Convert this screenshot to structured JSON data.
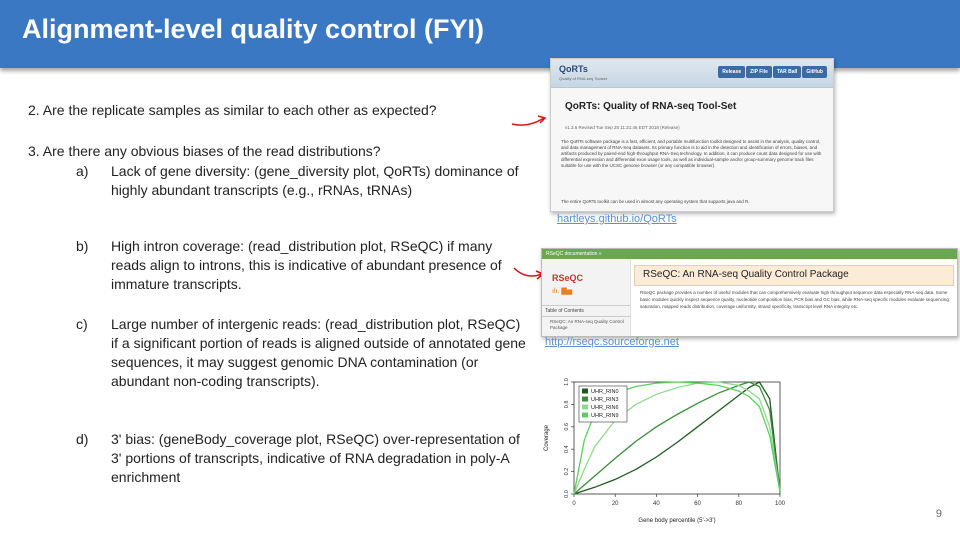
{
  "slide": {
    "title": "Alignment-level quality control (FYI)",
    "q2": "2. Are the replicate samples as similar to each other as expected?",
    "q3": "3. Are there any obvious biases of the read distributions?",
    "page_number": "9"
  },
  "items": [
    {
      "label": "a)",
      "text": "Lack of gene diversity: (gene_diversity plot, QoRTs) dominance of highly abundant transcripts (e.g., rRNAs, tRNAs)"
    },
    {
      "label": "b)",
      "text": "High intron coverage: (read_distribution plot, RSeQC) if many reads align to introns, this is indicative of abundant presence of immature transcripts."
    },
    {
      "label": "c)",
      "text": "Large number of intergenic reads: (read_distribution plot, RSeQC) if a significant portion of reads is aligned outside of annotated gene sequences, it may suggest genomic DNA contamination (or abundant non-coding transcripts)."
    },
    {
      "label": "d)",
      "text": "3' bias: (geneBody_coverage plot, RSeQC) over-representation of 3' portions of transcripts, indicative of RNA degradation in poly-A enrichment"
    }
  ],
  "qorts": {
    "brand": "QoRTs",
    "tagline": "Quality of RNA-seq Toolset",
    "buttons": [
      "Release",
      "ZIP File",
      "TAR Ball",
      "GitHub"
    ],
    "title": "QoRTs: Quality of RNA-seq Tool-Set",
    "revision": "v1.3.6 Revised Tue Sep 25 11:21:46 EDT 2018 (Release)",
    "description": "The QoRTs software package is a fast, efficient, and portable multifunction toolkit designed to assist in the analysis, quality control, and data management of RNA-Seq datasets. Its primary function is to aid in the detection and identification of errors, biases, and artifacts produced by paired-end high-throughput RNA-Seq technology. In addition, it can produce count data designed for use with differential expression and differential exon usage tools, as well as individual-sample and/or group-summary genome track files suitable for use with the UCSC genome browser (or any compatible browser).",
    "footer": "The entire QoRTs toolkit can be used in almost any operating system that supports java and R.",
    "link": "hartleys.github.io/QoRTs"
  },
  "rseqc": {
    "topbar": "RSeQC documentation »",
    "logo": "RSeQC",
    "logo_bars": "ılı. ▇▅",
    "toc": "Table of Contents",
    "toc_sub": "RSeQC: An RNA-seq Quality Control Package",
    "title": "RSeQC: An RNA-seq Quality Control Package",
    "description": "RSeQC package provides a number of useful modules that can comprehensively evaluate high throughput sequence data especially RNA-seq data. Some basic modules quickly inspect sequence quality, nucleotide composition bias, PCR bias and GC bias, while RNA-seq specific modules evaluate sequencing saturation, mapped reads distribution, coverage uniformity, strand specificity, transcript level RNA integrity etc.",
    "link": "http://rseqc.sourceforge.net"
  },
  "chart_data": {
    "type": "line",
    "xlabel": "Gene body percentile (5'->3')",
    "ylabel": "Coverage",
    "xlim": [
      0,
      100
    ],
    "ylim": [
      0,
      1
    ],
    "xticks": [
      "0",
      "20",
      "40",
      "60",
      "80",
      "100"
    ],
    "yticks": [
      "0.0",
      "0.2",
      "0.4",
      "0.6",
      "0.8",
      "1.0"
    ],
    "legend_position": "top-left",
    "x": [
      0,
      5,
      10,
      20,
      30,
      40,
      50,
      60,
      70,
      80,
      85,
      90,
      95,
      100
    ],
    "series": [
      {
        "name": "UHR_RIN0",
        "color": "#1e5a1e",
        "values": [
          0.0,
          0.03,
          0.06,
          0.13,
          0.22,
          0.33,
          0.46,
          0.6,
          0.74,
          0.88,
          0.95,
          1.0,
          0.85,
          0.02
        ]
      },
      {
        "name": "UHR_RIN3",
        "color": "#3d8c3d",
        "values": [
          0.0,
          0.08,
          0.16,
          0.32,
          0.47,
          0.6,
          0.71,
          0.81,
          0.9,
          0.97,
          1.0,
          0.96,
          0.75,
          0.02
        ]
      },
      {
        "name": "UHR_RIN6",
        "color": "#8fd98f",
        "values": [
          0.0,
          0.22,
          0.42,
          0.66,
          0.8,
          0.89,
          0.95,
          0.99,
          1.0,
          0.97,
          0.92,
          0.85,
          0.6,
          0.02
        ]
      },
      {
        "name": "UHR_RIN9",
        "color": "#5ecf5e",
        "values": [
          0.0,
          0.48,
          0.72,
          0.9,
          0.96,
          0.99,
          1.0,
          0.99,
          0.97,
          0.92,
          0.87,
          0.78,
          0.52,
          0.02
        ]
      }
    ]
  }
}
